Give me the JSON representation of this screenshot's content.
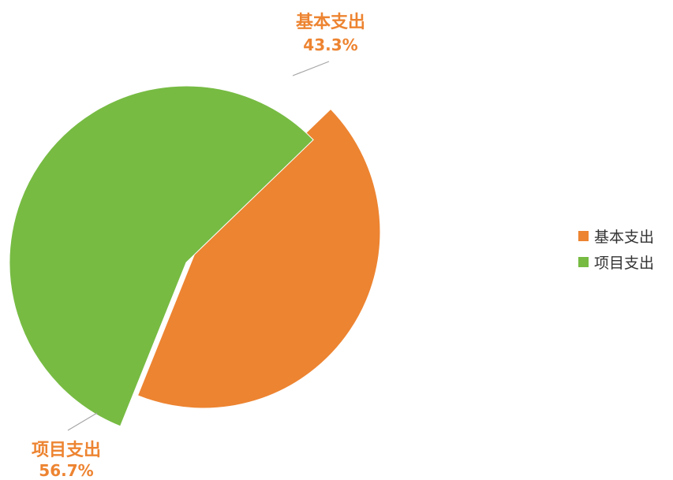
{
  "chart_data": {
    "type": "pie",
    "categories": [
      "基本支出",
      "项目支出"
    ],
    "values": [
      43.3,
      56.7
    ],
    "value_labels": [
      "43.3%",
      "56.7%"
    ],
    "colors": [
      "#ED8431",
      "#77BB43"
    ],
    "label_color": "#ED8431",
    "leader_line_color": "#A6A6A6",
    "exploded": "基本支出",
    "legend": "right"
  },
  "legend": {
    "items": [
      {
        "label": "基本支出",
        "color": "#ED8431"
      },
      {
        "label": "项目支出",
        "color": "#77BB43"
      }
    ]
  }
}
